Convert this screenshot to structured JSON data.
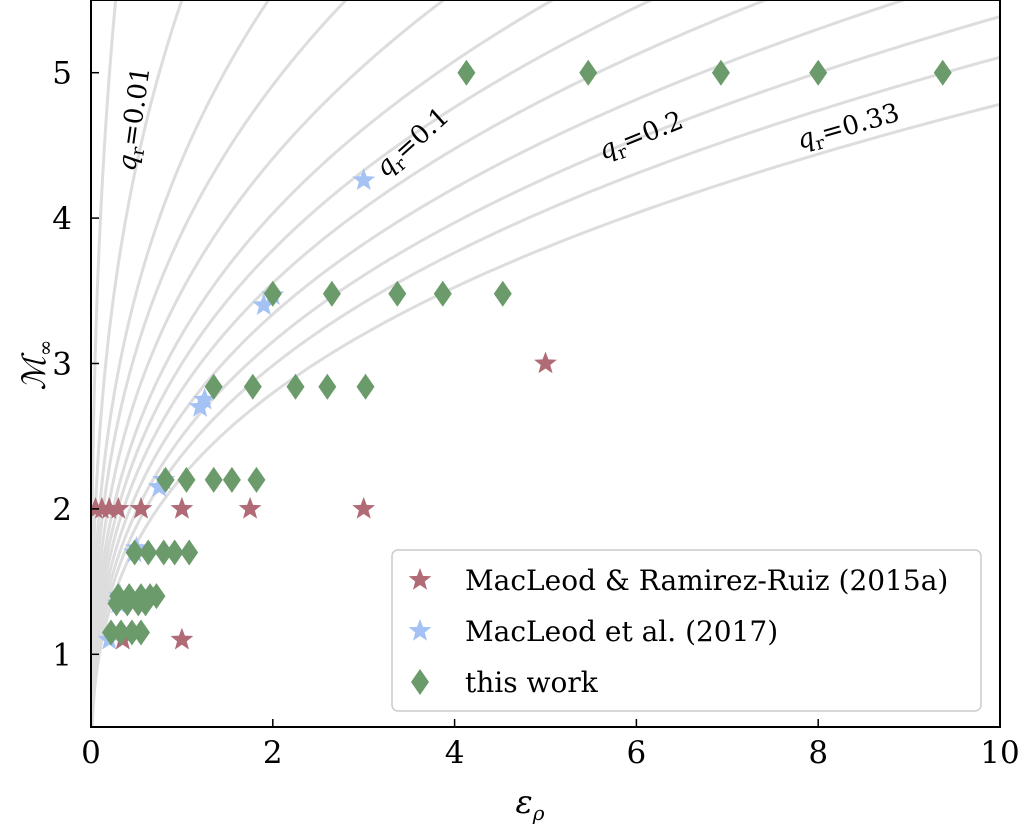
{
  "chart_data": {
    "type": "scatter",
    "xlabel": "ε",
    "xlabel_sub": "ρ",
    "ylabel": "ℳ",
    "ylabel_sub": "∞",
    "xlim": [
      0,
      10
    ],
    "ylim": [
      0.5,
      5.5
    ],
    "xticks": [
      0,
      2,
      4,
      6,
      8,
      10
    ],
    "yticks": [
      1,
      2,
      3,
      4,
      5
    ],
    "legend_position": "lower-right",
    "curves": {
      "color": "#dddddd",
      "family": "M = A * eps^(1/3)",
      "amplitudes": [
        8.5,
        5.5,
        4.4,
        3.9,
        3.5,
        3.2,
        3.0,
        2.82,
        2.65,
        2.5,
        2.37,
        2.22
      ]
    },
    "curve_labels": [
      {
        "q": "q",
        "sub": "r",
        "text": "=0.01"
      },
      {
        "q": "q",
        "sub": "r",
        "text": "=0.1"
      },
      {
        "q": "q",
        "sub": "r",
        "text": "=0.2"
      },
      {
        "q": "q",
        "sub": "r",
        "text": "=0.33"
      }
    ],
    "series": [
      {
        "name": "MacLeod & Ramirez-Ruiz (2015a)",
        "marker": "star",
        "color": "#b06b76",
        "points": [
          [
            0.05,
            2
          ],
          [
            0.12,
            2
          ],
          [
            0.2,
            2
          ],
          [
            0.3,
            2
          ],
          [
            0.55,
            2
          ],
          [
            1.0,
            2
          ],
          [
            1.75,
            2
          ],
          [
            3.0,
            2
          ],
          [
            5.0,
            3
          ],
          [
            0.35,
            1.1
          ],
          [
            1.0,
            1.1
          ]
        ]
      },
      {
        "name": "MacLeod et al. (2017)",
        "marker": "star",
        "color": "#a4c2f4",
        "points": [
          [
            0.2,
            1.1
          ],
          [
            0.3,
            1.35
          ],
          [
            0.32,
            1.4
          ],
          [
            0.48,
            1.7
          ],
          [
            0.5,
            1.73
          ],
          [
            0.75,
            2.15
          ],
          [
            0.8,
            2.2
          ],
          [
            1.2,
            2.7
          ],
          [
            1.25,
            2.75
          ],
          [
            1.9,
            3.4
          ],
          [
            2.0,
            3.47
          ],
          [
            3.0,
            4.26
          ]
        ]
      },
      {
        "name": "this work",
        "marker": "diamond",
        "color": "#6b9a6b",
        "points": [
          [
            4.13,
            5
          ],
          [
            5.47,
            5
          ],
          [
            6.93,
            5
          ],
          [
            8.0,
            5
          ],
          [
            9.37,
            5
          ],
          [
            2.0,
            3.48
          ],
          [
            2.65,
            3.48
          ],
          [
            3.37,
            3.48
          ],
          [
            3.87,
            3.48
          ],
          [
            4.53,
            3.48
          ],
          [
            1.35,
            2.84
          ],
          [
            1.78,
            2.84
          ],
          [
            2.25,
            2.84
          ],
          [
            2.6,
            2.84
          ],
          [
            3.02,
            2.84
          ],
          [
            0.82,
            2.2
          ],
          [
            1.05,
            2.2
          ],
          [
            1.35,
            2.2
          ],
          [
            1.55,
            2.2
          ],
          [
            1.82,
            2.2
          ],
          [
            0.48,
            1.7
          ],
          [
            0.63,
            1.7
          ],
          [
            0.8,
            1.7
          ],
          [
            0.92,
            1.7
          ],
          [
            1.08,
            1.7
          ],
          [
            0.3,
            1.4
          ],
          [
            0.42,
            1.4
          ],
          [
            0.55,
            1.4
          ],
          [
            0.65,
            1.4
          ],
          [
            0.72,
            1.4
          ],
          [
            0.28,
            1.35
          ],
          [
            0.4,
            1.35
          ],
          [
            0.52,
            1.35
          ],
          [
            0.6,
            1.35
          ],
          [
            0.22,
            1.15
          ],
          [
            0.33,
            1.15
          ],
          [
            0.45,
            1.15
          ],
          [
            0.55,
            1.15
          ]
        ]
      }
    ]
  }
}
